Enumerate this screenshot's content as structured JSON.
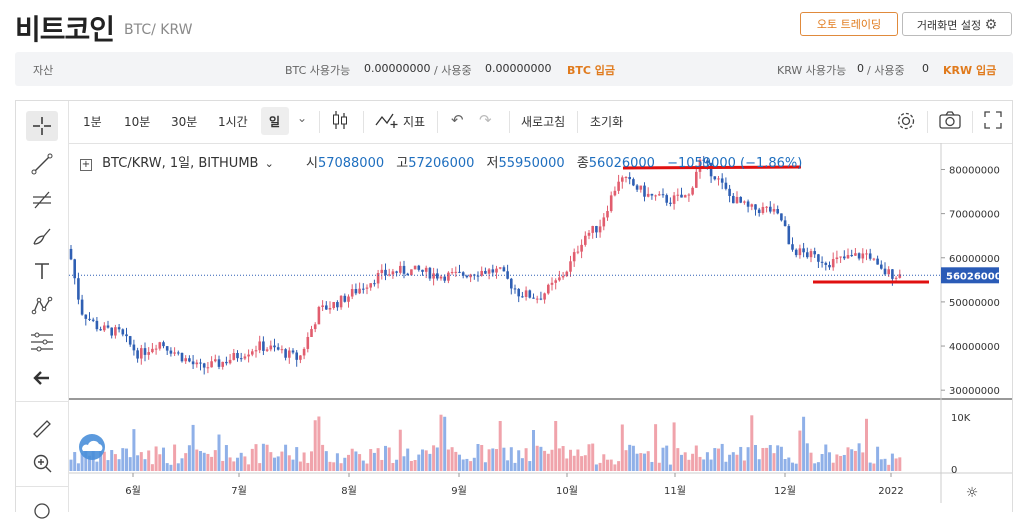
{
  "header": {
    "title": "비트코인",
    "subtitle": "BTC/ KRW",
    "auto_trade_label": "오토 트레이딩",
    "settings_label": "거래화면 설정"
  },
  "balance": {
    "label": "자산",
    "btc_available_label": "BTC 사용가능",
    "btc_available": "0.00000000",
    "btc_in_use_label": "/ 사용중",
    "btc_in_use": "0.00000000",
    "btc_deposit": "BTC 입금",
    "krw_available_label": "KRW 사용가능",
    "krw_available": "0",
    "krw_in_use_label": "/ 사용중",
    "krw_in_use": "0",
    "krw_deposit": "KRW 입금"
  },
  "toolbar": {
    "intervals": [
      "1분",
      "10분",
      "30분",
      "1시간",
      "일"
    ],
    "indicators_label": "지표",
    "refresh_label": "새로고침",
    "reset_label": "초기화"
  },
  "left_tools": [
    "crosshair-icon",
    "trendline-icon",
    "fib-icon",
    "brush-icon",
    "text-icon",
    "pattern-icon",
    "measure-icon",
    "back-arrow-icon",
    "ruler-icon",
    "zoom-icon"
  ],
  "legend": {
    "symbol": "BTC/KRW, 1일, BITHUMB",
    "open_label": "시",
    "open": "57088000",
    "high_label": "고",
    "high": "57206000",
    "low_label": "저",
    "low": "55950000",
    "close_label": "종",
    "close": "56026000",
    "change": "−1059000 (−1.86%)"
  },
  "colors": {
    "up": "#e15d6e",
    "down": "#2f5fb3",
    "vol_up": "#f0a3ab",
    "vol_down": "#8fb0e8",
    "accent": "#e07a1c",
    "annotation": "#e01010"
  },
  "chart_data": {
    "type": "candlestick",
    "price_axis": {
      "ticks": [
        80000000,
        70000000,
        60000000,
        50000000,
        40000000,
        30000000
      ],
      "range": [
        28000000,
        86000000
      ]
    },
    "volume_axis": {
      "ticks": [
        "10K",
        "0"
      ]
    },
    "x_labels": [
      "6월",
      "7월",
      "8월",
      "9월",
      "10월",
      "11월",
      "12월",
      "2022"
    ],
    "current_price": "56026000",
    "monthly_path": [
      {
        "month": "6월",
        "close": 44000000
      },
      {
        "month": "7월",
        "close": 38000000
      },
      {
        "month": "8월",
        "close": 47000000
      },
      {
        "month": "9월",
        "close": 56000000
      },
      {
        "month": "10월",
        "close": 60000000
      },
      {
        "month": "11월",
        "close": 72000000
      },
      {
        "month": "12월",
        "close": 60000000
      },
      {
        "month": "2022",
        "close": 56026000
      }
    ]
  }
}
